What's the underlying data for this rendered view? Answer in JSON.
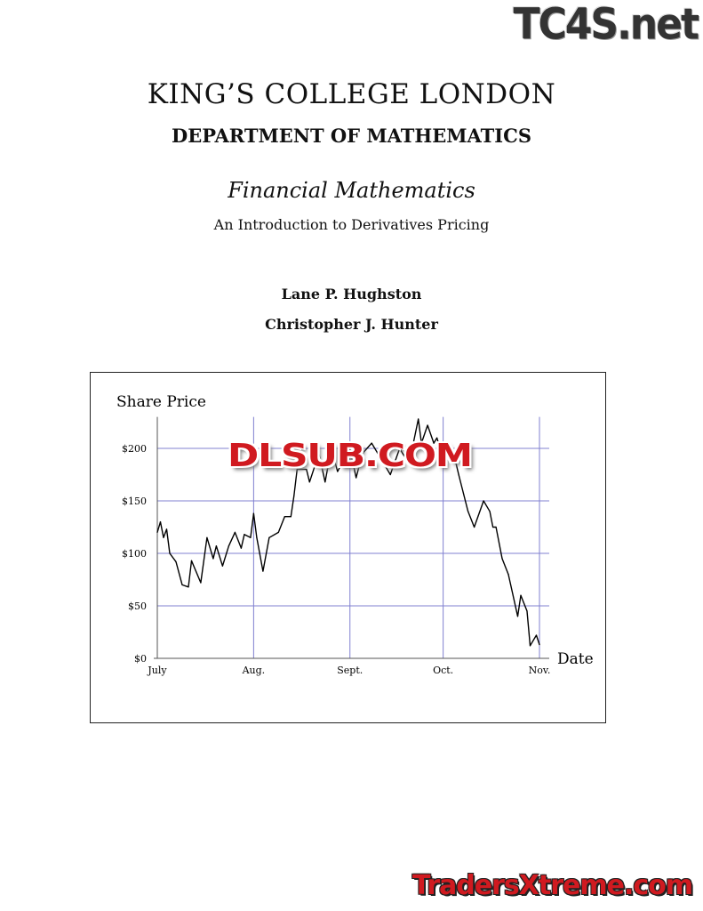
{
  "header": {
    "institution": "KING’S COLLEGE LONDON",
    "department": "DEPARTMENT OF MATHEMATICS"
  },
  "book": {
    "title": "Financial Mathematics",
    "subtitle": "An Introduction to Derivatives Pricing"
  },
  "authors": [
    "Lane P. Hughston",
    "Christopher J. Hunter"
  ],
  "watermarks": [
    "TC4S.net",
    "DLSUB.COM",
    "TradersXtreme.com"
  ],
  "chart_data": {
    "type": "line",
    "ylabel": "Share Price",
    "xlabel": "Date",
    "ylim": [
      0,
      230
    ],
    "yticks": [
      0,
      50,
      100,
      150,
      200
    ],
    "ytick_labels": [
      "$0",
      "$50",
      "$100",
      "$150",
      "$200"
    ],
    "xticks": [
      "07-01",
      "08-01",
      "09-01",
      "10-01",
      "11-01"
    ],
    "xtick_labels": [
      "July",
      "Aug.",
      "Sept.",
      "Oct.",
      "Nov."
    ],
    "grid": true,
    "colors": {
      "line": "#000000",
      "grid": "#8080d0",
      "axis": "#555555"
    },
    "x": [
      "07-01",
      "07-02",
      "07-03",
      "07-04",
      "07-05",
      "07-07",
      "07-09",
      "07-11",
      "07-12",
      "07-15",
      "07-17",
      "07-19",
      "07-20",
      "07-22",
      "07-24",
      "07-26",
      "07-28",
      "07-29",
      "07-31",
      "08-01",
      "08-02",
      "08-04",
      "08-06",
      "08-09",
      "08-11",
      "08-13",
      "08-14",
      "08-15",
      "08-18",
      "08-19",
      "08-22",
      "08-24",
      "08-26",
      "08-28",
      "09-01",
      "09-03",
      "09-05",
      "09-08",
      "09-11",
      "09-14",
      "09-17",
      "09-20",
      "09-23",
      "09-24",
      "09-26",
      "09-28",
      "09-29",
      "10-01",
      "10-04",
      "10-06",
      "10-09",
      "10-11",
      "10-14",
      "10-16",
      "10-17",
      "10-18",
      "10-20",
      "10-22",
      "10-25",
      "10-26",
      "10-28",
      "10-29",
      "10-31",
      "11-01"
    ],
    "values": [
      120,
      130,
      115,
      123,
      100,
      92,
      70,
      68,
      93,
      72,
      115,
      95,
      107,
      88,
      107,
      120,
      105,
      118,
      115,
      138,
      115,
      83,
      115,
      120,
      135,
      135,
      155,
      180,
      180,
      168,
      195,
      168,
      200,
      178,
      200,
      172,
      195,
      205,
      190,
      175,
      200,
      185,
      228,
      205,
      222,
      205,
      210,
      190,
      200,
      175,
      140,
      125,
      150,
      140,
      125,
      125,
      95,
      80,
      40,
      60,
      45,
      12,
      22,
      13
    ]
  }
}
